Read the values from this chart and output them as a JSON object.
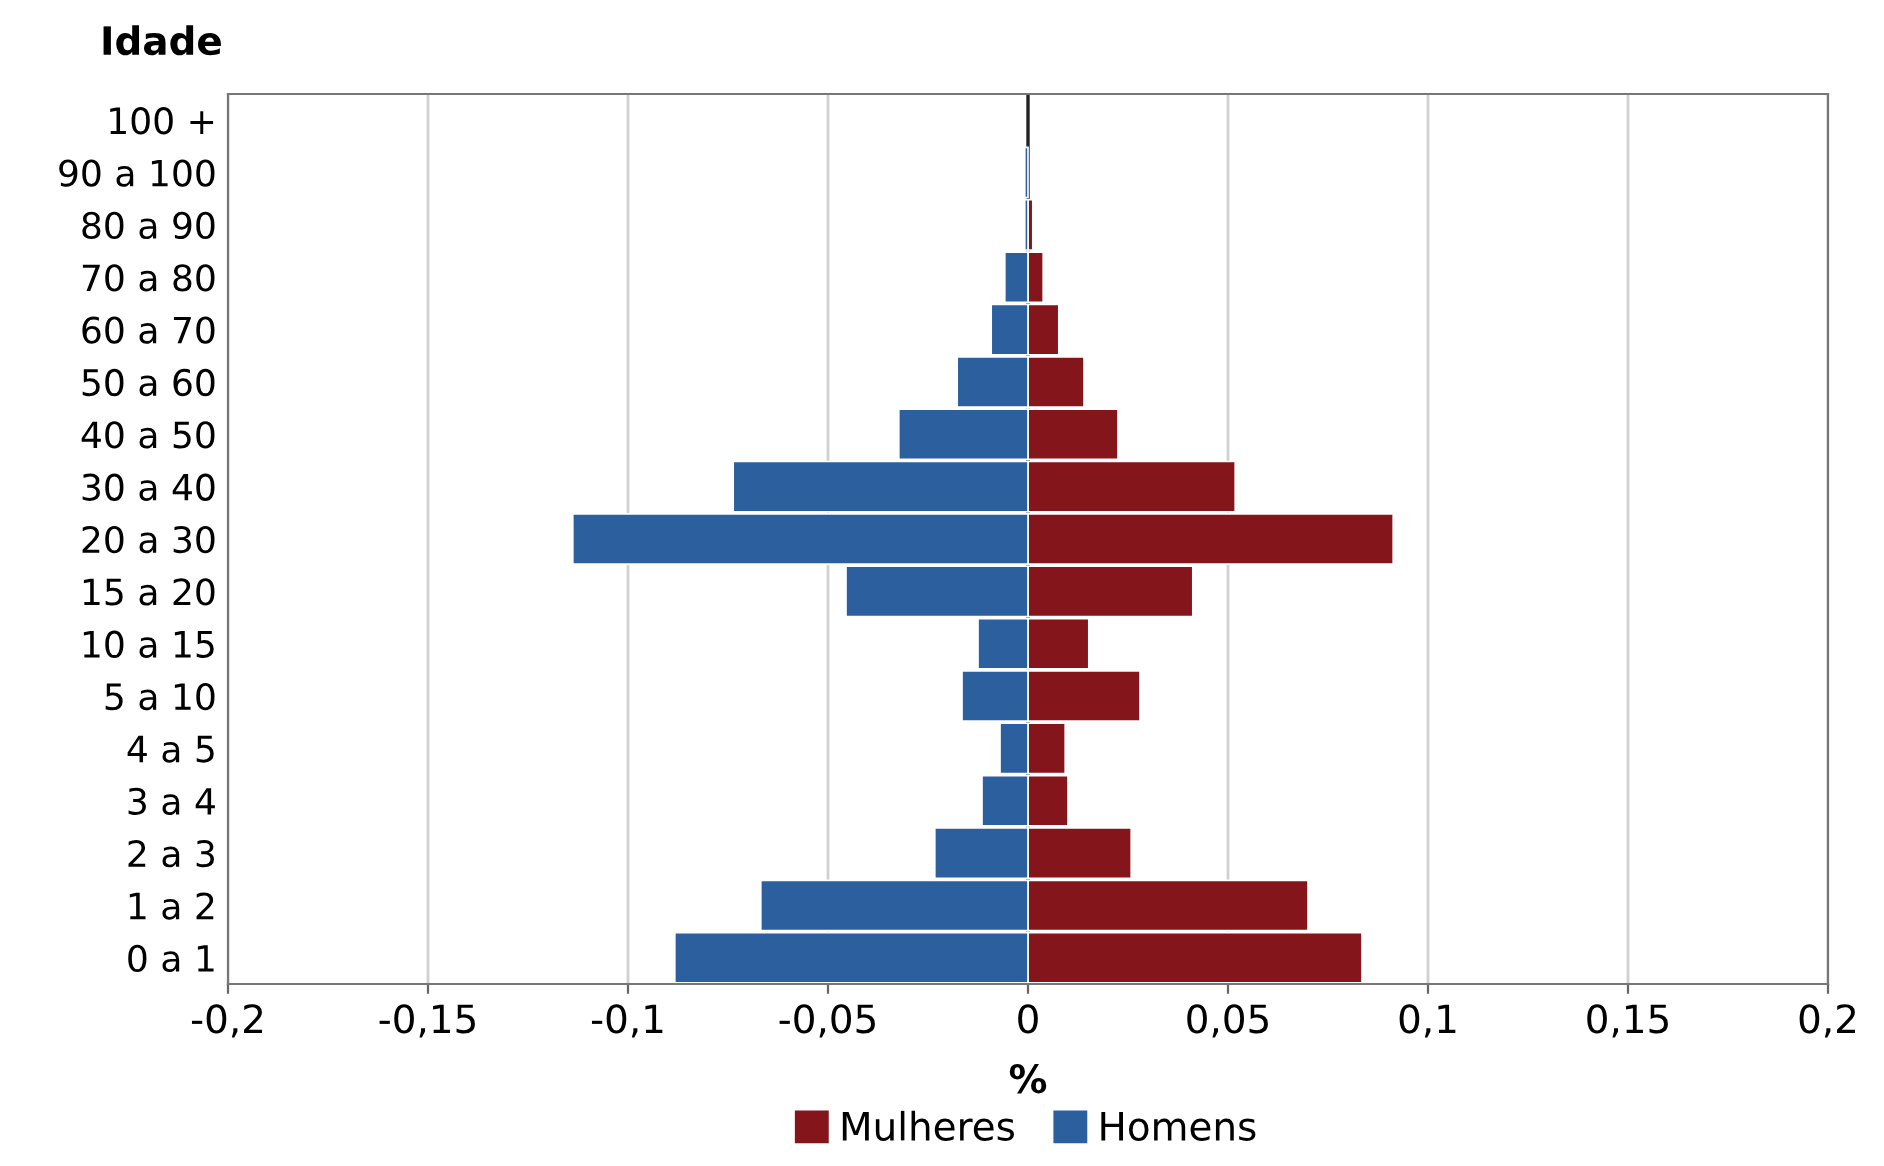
{
  "chart_data": {
    "type": "bar",
    "orientation": "horizontal",
    "stacked": true,
    "ylabel": "Idade",
    "xlabel": "%",
    "categories": [
      "100 +",
      "90 a 100",
      "80 a 90",
      "70 a 80",
      "60 a 70",
      "50 a 60",
      "40 a 50",
      "30 a 40",
      "20 a 30",
      "15 a 20",
      "10 a 15",
      "5 a 10",
      "4 a 5",
      "3 a 4",
      "2 a 3",
      "1 a 2",
      "0 a 1"
    ],
    "series": [
      {
        "name": "Mulheres",
        "color": "#84151a",
        "values": [
          null,
          null,
          0.0012,
          0.0038,
          0.0077,
          0.014,
          0.0225,
          0.0518,
          0.0913,
          0.0412,
          0.0152,
          0.028,
          0.0093,
          0.01,
          0.0258,
          0.07,
          0.0835
        ]
      },
      {
        "name": "Homens",
        "color": "#2c5f9e",
        "values": [
          null,
          -0.0008,
          -0.0008,
          -0.0058,
          -0.0092,
          -0.0177,
          -0.0323,
          -0.0737,
          -0.1138,
          -0.0455,
          -0.0125,
          -0.0165,
          -0.007,
          -0.0115,
          -0.0233,
          -0.0668,
          -0.0883
        ]
      }
    ],
    "xlim": [
      -0.2,
      0.2
    ],
    "xticks": [
      {
        "value": -0.2,
        "label": "-0,2"
      },
      {
        "value": -0.15,
        "label": "-0,15"
      },
      {
        "value": -0.1,
        "label": "-0,1"
      },
      {
        "value": -0.05,
        "label": "-0,05"
      },
      0,
      {
        "value": 0.05,
        "label": "0,05"
      },
      {
        "value": 0.1,
        "label": "0,1"
      },
      {
        "value": 0.15,
        "label": "0,15"
      },
      {
        "value": 0.2,
        "label": "0,2"
      }
    ],
    "grid": "x",
    "legend": "bottom"
  }
}
